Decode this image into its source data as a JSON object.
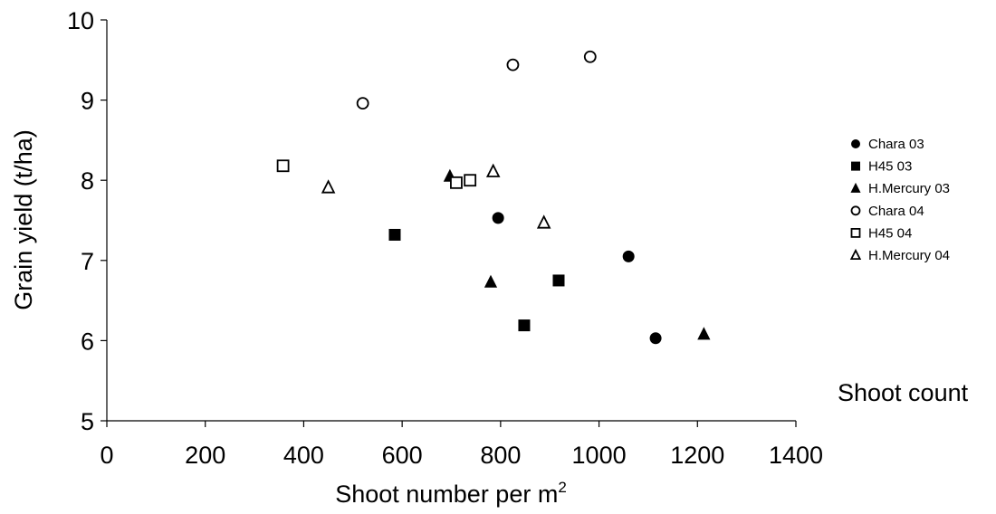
{
  "chart_data": {
    "type": "scatter",
    "title": "",
    "xlabel": "Shoot number per m",
    "xlabel_superscript": "2",
    "ylabel": "Grain yield (t/ha)",
    "xlim": [
      0,
      1400
    ],
    "ylim": [
      5,
      10
    ],
    "xticks": [
      "0",
      "200",
      "400",
      "600",
      "800",
      "1000",
      "1200",
      "1400"
    ],
    "yticks": [
      "5",
      "6",
      "7",
      "8",
      "9",
      "10"
    ],
    "grid": false,
    "legend_position": "right",
    "annotation": "Shoot count",
    "series": [
      {
        "name": "Chara 03",
        "marker": "circle",
        "filled": true,
        "points": [
          [
            795,
            7.53
          ],
          [
            1060,
            7.05
          ],
          [
            1115,
            6.03
          ]
        ]
      },
      {
        "name": "H45 03",
        "marker": "square",
        "filled": true,
        "points": [
          [
            585,
            7.32
          ],
          [
            848,
            6.19
          ],
          [
            918,
            6.75
          ]
        ]
      },
      {
        "name": "H.Mercury 03",
        "marker": "triangle",
        "filled": true,
        "points": [
          [
            697,
            8.05
          ],
          [
            780,
            6.73
          ],
          [
            1213,
            6.08
          ]
        ]
      },
      {
        "name": "Chara 04",
        "marker": "circle",
        "filled": false,
        "points": [
          [
            520,
            8.96
          ],
          [
            825,
            9.44
          ],
          [
            982,
            9.54
          ]
        ]
      },
      {
        "name": "H45 04",
        "marker": "square",
        "filled": false,
        "points": [
          [
            358,
            8.18
          ],
          [
            710,
            7.97
          ],
          [
            738,
            8.0
          ]
        ]
      },
      {
        "name": "H.Mercury 04",
        "marker": "triangle",
        "filled": false,
        "points": [
          [
            450,
            7.91
          ],
          [
            785,
            8.11
          ],
          [
            888,
            7.47
          ]
        ]
      }
    ]
  }
}
